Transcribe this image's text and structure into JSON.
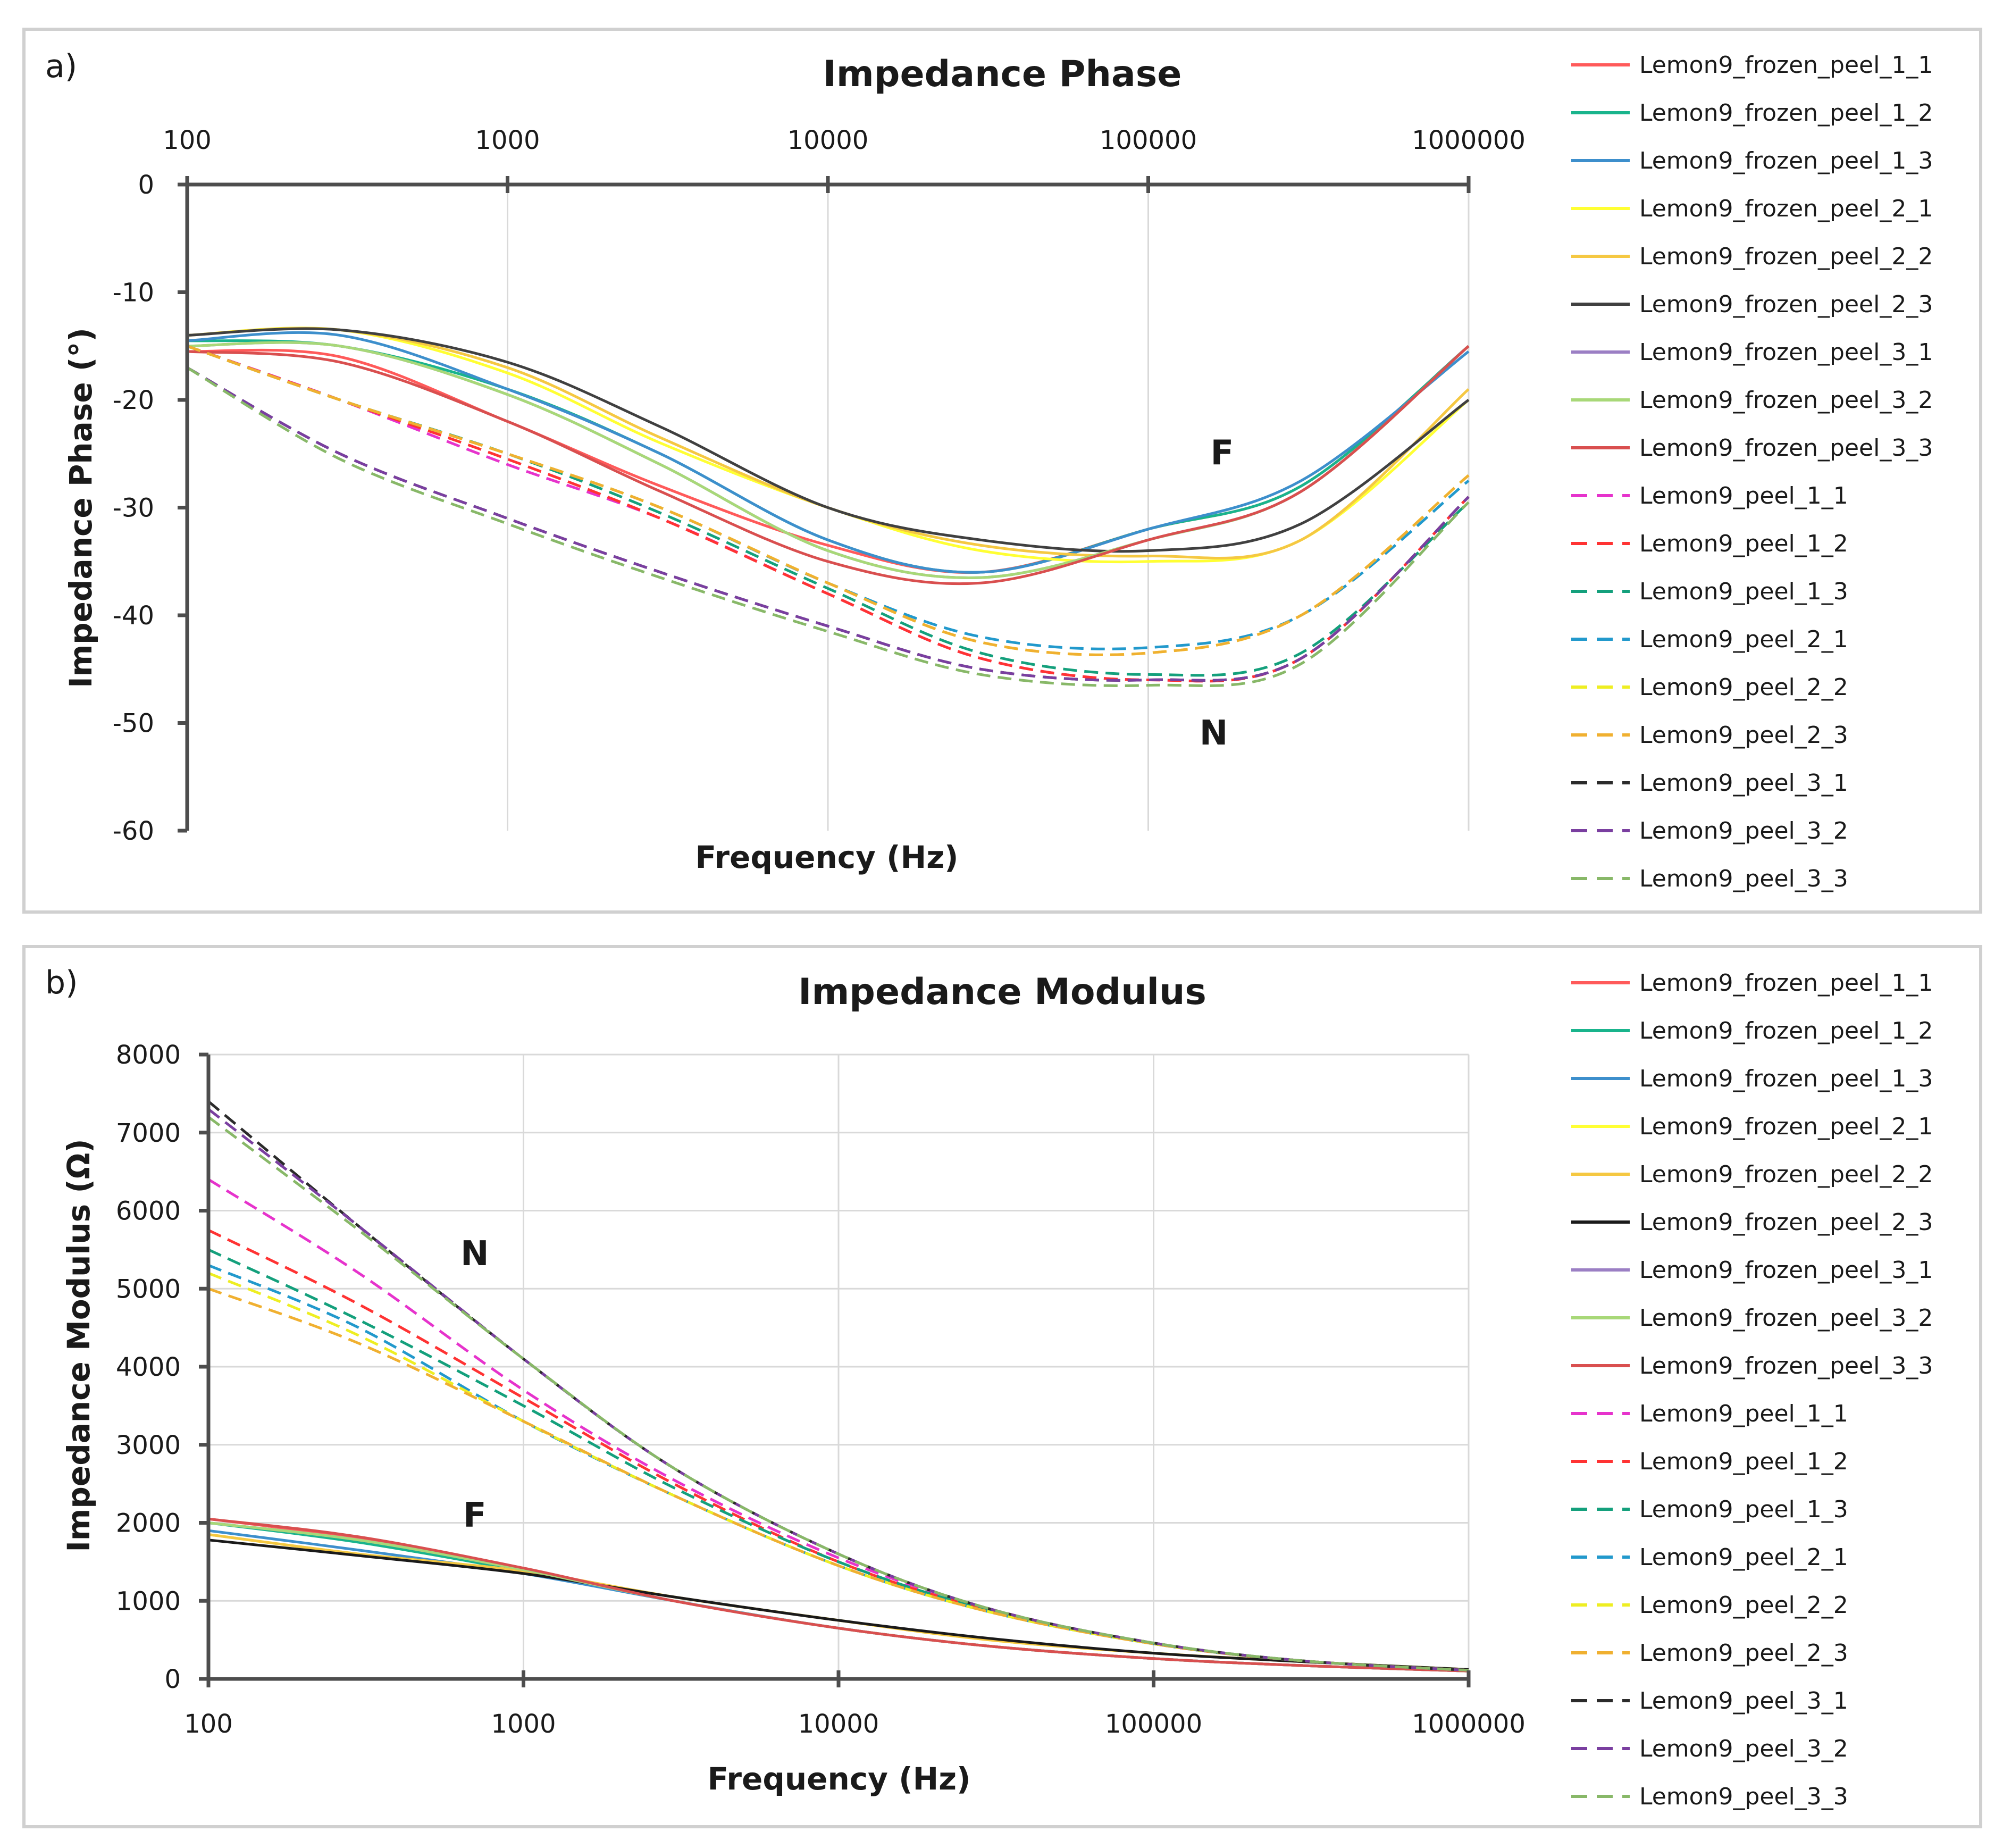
{
  "chart_data": [
    {
      "type": "line",
      "panel_label": "a)",
      "title": "Impedance Phase",
      "xlabel": "Frequency (Hz)",
      "ylabel": "Impedance Phase (°)",
      "x_scale": "log",
      "xlim": [
        100,
        1000000
      ],
      "ylim": [
        -60,
        0
      ],
      "x_ticks": [
        "100",
        "1000",
        "10000",
        "100000",
        "1000000"
      ],
      "y_ticks": [
        "0",
        "-10",
        "-20",
        "-30",
        "-40",
        "-50",
        "-60"
      ],
      "x_tick_position": "top",
      "grid": "vertical",
      "legend_position": "right",
      "annotations": [
        {
          "text": "F",
          "x": 170000,
          "y": -26
        },
        {
          "text": "N",
          "x": 160000,
          "y": -52
        }
      ],
      "x": [
        100,
        300,
        1000,
        3000,
        10000,
        30000,
        100000,
        300000,
        1000000
      ],
      "series": [
        {
          "name": "Lemon9_frozen_peel_1_1",
          "color": "#ff5a5a",
          "dash": false,
          "values": [
            -15.5,
            -16,
            -22,
            -28,
            -33.5,
            -36,
            -32,
            -28,
            -15
          ]
        },
        {
          "name": "Lemon9_frozen_peel_1_2",
          "color": "#19b48c",
          "dash": false,
          "values": [
            -14.5,
            -15,
            -19,
            -25,
            -33,
            -36,
            -32,
            -28,
            -15
          ]
        },
        {
          "name": "Lemon9_frozen_peel_1_3",
          "color": "#3d8fcc",
          "dash": false,
          "values": [
            -14.5,
            -14,
            -19,
            -25,
            -33,
            -36,
            -32,
            -27.5,
            -15.5
          ]
        },
        {
          "name": "Lemon9_frozen_peel_2_1",
          "color": "#ffff33",
          "dash": false,
          "values": [
            -14,
            -13.5,
            -17.5,
            -24,
            -30,
            -34,
            -35,
            -33,
            -20
          ]
        },
        {
          "name": "Lemon9_frozen_peel_2_2",
          "color": "#f5c842",
          "dash": false,
          "values": [
            -14,
            -13.5,
            -17,
            -23.5,
            -30,
            -33.5,
            -34.5,
            -33,
            -19
          ]
        },
        {
          "name": "Lemon9_frozen_peel_2_3",
          "color": "#404040",
          "dash": false,
          "values": [
            -14,
            -13.5,
            -16.5,
            -22.5,
            -30,
            -33,
            -34,
            -31.5,
            -20
          ]
        },
        {
          "name": "Lemon9_frozen_peel_3_1",
          "color": "#9b7fc4",
          "dash": false,
          "values": [
            -15,
            -15,
            -19.5,
            -26,
            -34,
            -36.5,
            -33,
            -28.5,
            -15
          ]
        },
        {
          "name": "Lemon9_frozen_peel_3_2",
          "color": "#a8d878",
          "dash": false,
          "values": [
            -15,
            -15,
            -19.5,
            -26,
            -34,
            -36.5,
            -33,
            -28.5,
            -15
          ]
        },
        {
          "name": "Lemon9_frozen_peel_3_3",
          "color": "#d94f4f",
          "dash": false,
          "values": [
            -15.5,
            -16.5,
            -22,
            -28.5,
            -35,
            -37,
            -33,
            -28.5,
            -15
          ]
        },
        {
          "name": "Lemon9_peel_1_1",
          "color": "#e633cc",
          "dash": true,
          "values": [
            -15,
            -20,
            -26,
            -31,
            -38,
            -44,
            -46,
            -44,
            -29
          ]
        },
        {
          "name": "Lemon9_peel_1_2",
          "color": "#ff3333",
          "dash": true,
          "values": [
            -15,
            -20,
            -25.5,
            -31,
            -38,
            -44,
            -46,
            -44,
            -29
          ]
        },
        {
          "name": "Lemon9_peel_1_3",
          "color": "#14a07c",
          "dash": true,
          "values": [
            -15,
            -20,
            -25,
            -30.5,
            -37.5,
            -43.5,
            -45.5,
            -43.5,
            -29.5
          ]
        },
        {
          "name": "Lemon9_peel_2_1",
          "color": "#2299cc",
          "dash": true,
          "values": [
            -15,
            -20,
            -25,
            -30,
            -37,
            -42,
            -43,
            -40,
            -27.5
          ]
        },
        {
          "name": "Lemon9_peel_2_2",
          "color": "#eeee22",
          "dash": true,
          "values": [
            -15,
            -20,
            -25,
            -30,
            -37,
            -42.5,
            -43.5,
            -40,
            -27
          ]
        },
        {
          "name": "Lemon9_peel_2_3",
          "color": "#f0b030",
          "dash": true,
          "values": [
            -15,
            -20,
            -25,
            -30,
            -37,
            -42.5,
            -43.5,
            -40,
            -27
          ]
        },
        {
          "name": "Lemon9_peel_3_1",
          "color": "#2b2b2b",
          "dash": true,
          "values": [
            -17,
            -25,
            -31,
            -36,
            -41,
            -45,
            -46,
            -44,
            -29
          ]
        },
        {
          "name": "Lemon9_peel_3_2",
          "color": "#7a3fa0",
          "dash": true,
          "values": [
            -17,
            -25,
            -31,
            -36,
            -41,
            -45,
            -46,
            -44,
            -29
          ]
        },
        {
          "name": "Lemon9_peel_3_3",
          "color": "#88b868",
          "dash": true,
          "values": [
            -17,
            -25.5,
            -31.5,
            -36.5,
            -41.5,
            -45.5,
            -46.5,
            -44.5,
            -29.5
          ]
        }
      ]
    },
    {
      "type": "line",
      "panel_label": "b)",
      "title": "Impedance Modulus",
      "xlabel": "Frequency (Hz)",
      "ylabel": "Impedance Modulus (Ω)",
      "x_scale": "log",
      "xlim": [
        100,
        1000000
      ],
      "ylim": [
        0,
        8000
      ],
      "x_ticks": [
        "100",
        "1000",
        "10000",
        "100000",
        "1000000"
      ],
      "y_ticks": [
        "8000",
        "7000",
        "6000",
        "5000",
        "4000",
        "3000",
        "2000",
        "1000",
        "0"
      ],
      "x_tick_position": "bottom",
      "grid": "both",
      "legend_position": "right",
      "annotations": [
        {
          "text": "N",
          "x": 700,
          "y": 5300
        },
        {
          "text": "F",
          "x": 700,
          "y": 1950
        }
      ],
      "x": [
        100,
        300,
        1000,
        3000,
        10000,
        30000,
        100000,
        300000,
        1000000
      ],
      "series": [
        {
          "name": "Lemon9_frozen_peel_1_1",
          "color": "#ff5a5a",
          "dash": false,
          "values": [
            2050,
            1800,
            1400,
            1000,
            650,
            420,
            260,
            170,
            100
          ]
        },
        {
          "name": "Lemon9_frozen_peel_1_2",
          "color": "#19b48c",
          "dash": false,
          "values": [
            2000,
            1750,
            1380,
            1000,
            650,
            420,
            260,
            170,
            100
          ]
        },
        {
          "name": "Lemon9_frozen_peel_1_3",
          "color": "#3d8fcc",
          "dash": false,
          "values": [
            1900,
            1650,
            1350,
            1000,
            650,
            420,
            260,
            170,
            100
          ]
        },
        {
          "name": "Lemon9_frozen_peel_2_1",
          "color": "#ffff33",
          "dash": false,
          "values": [
            1850,
            1600,
            1380,
            1050,
            750,
            500,
            330,
            220,
            120
          ]
        },
        {
          "name": "Lemon9_frozen_peel_2_2",
          "color": "#f5c842",
          "dash": false,
          "values": [
            1850,
            1600,
            1380,
            1050,
            750,
            500,
            330,
            220,
            120
          ]
        },
        {
          "name": "Lemon9_frozen_peel_2_3",
          "color": "#1a1a1a",
          "dash": false,
          "values": [
            1780,
            1580,
            1350,
            1050,
            750,
            520,
            330,
            220,
            120
          ]
        },
        {
          "name": "Lemon9_frozen_peel_3_1",
          "color": "#9b7fc4",
          "dash": false,
          "values": [
            2000,
            1780,
            1400,
            1000,
            650,
            420,
            260,
            170,
            100
          ]
        },
        {
          "name": "Lemon9_frozen_peel_3_2",
          "color": "#a8d878",
          "dash": false,
          "values": [
            2000,
            1780,
            1400,
            1000,
            650,
            420,
            260,
            170,
            100
          ]
        },
        {
          "name": "Lemon9_frozen_peel_3_3",
          "color": "#d94f4f",
          "dash": false,
          "values": [
            2050,
            1820,
            1420,
            1000,
            650,
            420,
            260,
            170,
            100
          ]
        },
        {
          "name": "Lemon9_peel_1_1",
          "color": "#e633cc",
          "dash": true,
          "values": [
            6400,
            5200,
            3700,
            2550,
            1550,
            900,
            450,
            230,
            110
          ]
        },
        {
          "name": "Lemon9_peel_1_2",
          "color": "#ff3333",
          "dash": true,
          "values": [
            5750,
            4800,
            3600,
            2500,
            1500,
            880,
            450,
            230,
            110
          ]
        },
        {
          "name": "Lemon9_peel_1_3",
          "color": "#14a07c",
          "dash": true,
          "values": [
            5500,
            4600,
            3500,
            2450,
            1500,
            880,
            450,
            230,
            110
          ]
        },
        {
          "name": "Lemon9_peel_2_1",
          "color": "#2299cc",
          "dash": true,
          "values": [
            5300,
            4500,
            3300,
            2350,
            1450,
            860,
            450,
            230,
            110
          ]
        },
        {
          "name": "Lemon9_peel_2_2",
          "color": "#eeee22",
          "dash": true,
          "values": [
            5200,
            4400,
            3300,
            2350,
            1450,
            860,
            450,
            230,
            110
          ]
        },
        {
          "name": "Lemon9_peel_2_3",
          "color": "#f0b030",
          "dash": true,
          "values": [
            5000,
            4300,
            3300,
            2350,
            1450,
            860,
            450,
            230,
            110
          ]
        },
        {
          "name": "Lemon9_peel_3_1",
          "color": "#2b2b2b",
          "dash": true,
          "values": [
            7400,
            5800,
            4100,
            2700,
            1600,
            900,
            460,
            230,
            110
          ]
        },
        {
          "name": "Lemon9_peel_3_2",
          "color": "#7a3fa0",
          "dash": true,
          "values": [
            7300,
            5800,
            4100,
            2700,
            1600,
            900,
            460,
            230,
            110
          ]
        },
        {
          "name": "Lemon9_peel_3_3",
          "color": "#88b868",
          "dash": true,
          "values": [
            7200,
            5750,
            4100,
            2700,
            1600,
            900,
            460,
            230,
            110
          ]
        }
      ]
    }
  ]
}
